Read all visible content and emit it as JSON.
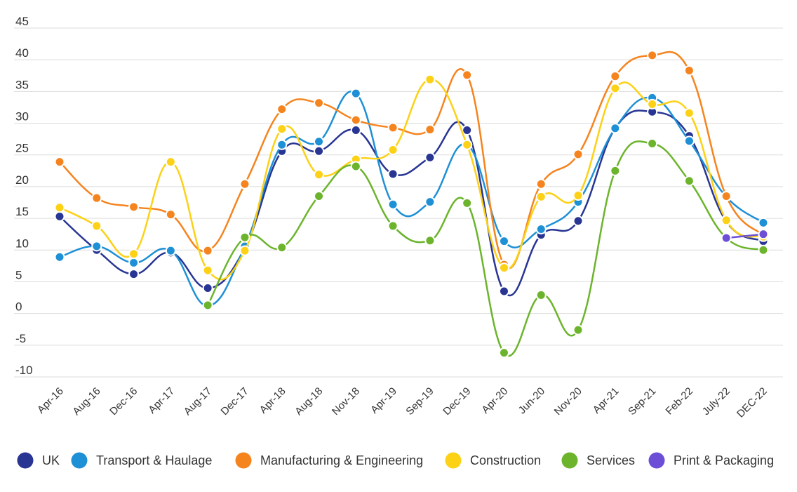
{
  "chart_data": {
    "type": "line",
    "title": "",
    "xlabel": "",
    "ylabel": "",
    "ylim": [
      -10,
      45
    ],
    "yticks": [
      45,
      40,
      35,
      30,
      25,
      20,
      15,
      10,
      5,
      0,
      -5,
      -10
    ],
    "grid": true,
    "legend_position": "bottom",
    "categories": [
      "Apr-16",
      "Aug-16",
      "Dec-16",
      "Apr-17",
      "Aug-17",
      "Dec-17",
      "Apr-18",
      "Aug-18",
      "Nov-18",
      "Apr-19",
      "Sep-19",
      "Dec-19",
      "Apr-20",
      "Jun-20",
      "Nov-20",
      "Apr-21",
      "Sep-21",
      "Feb-22",
      "July-22",
      "DEC-22"
    ],
    "series": [
      {
        "name": "UK",
        "color": "#283593",
        "values": [
          15.3,
          10,
          6.2,
          9.6,
          4,
          10.3,
          25.6,
          25.6,
          28.9,
          22,
          24.6,
          28.9,
          3.5,
          12.4,
          14.6,
          29.2,
          31.8,
          28,
          14.5,
          11.4
        ]
      },
      {
        "name": "Transport & Haulage",
        "color": "#1e90d6",
        "values": [
          8.9,
          10.6,
          8,
          9.9,
          1.2,
          10.6,
          26.6,
          27.1,
          34.7,
          17.2,
          17.6,
          26.6,
          11.4,
          13.3,
          17.6,
          29.2,
          34,
          27.2,
          18.4,
          14.3
        ]
      },
      {
        "name": "Manufacturing & Engineering",
        "color": "#f5841f",
        "values": [
          23.9,
          18.2,
          16.8,
          15.6,
          9.9,
          20.4,
          32.2,
          33.2,
          30.5,
          29.3,
          29,
          37.6,
          7.7,
          20.4,
          25.1,
          37.4,
          40.7,
          38.3,
          18.5,
          12.3
        ]
      },
      {
        "name": "Construction",
        "color": "#fcd116",
        "values": [
          16.7,
          13.8,
          9.4,
          23.9,
          6.8,
          9.9,
          29.1,
          21.9,
          24.3,
          25.8,
          36.9,
          26.6,
          7.2,
          18.4,
          18.6,
          35.5,
          33,
          31.6,
          14.7,
          12.1
        ]
      },
      {
        "name": "Services",
        "color": "#6cb42c",
        "values": [
          null,
          null,
          null,
          null,
          1.3,
          12,
          10.4,
          18.5,
          23.2,
          13.8,
          11.5,
          17.4,
          -6.2,
          2.9,
          -2.6,
          22.5,
          26.8,
          20.9,
          11.9,
          10
        ]
      },
      {
        "name": "Print & Packaging",
        "color": "#6c4fd6",
        "values": [
          null,
          null,
          null,
          null,
          null,
          null,
          null,
          null,
          null,
          null,
          null,
          null,
          null,
          null,
          null,
          null,
          null,
          null,
          11.9,
          12.5
        ]
      }
    ]
  }
}
